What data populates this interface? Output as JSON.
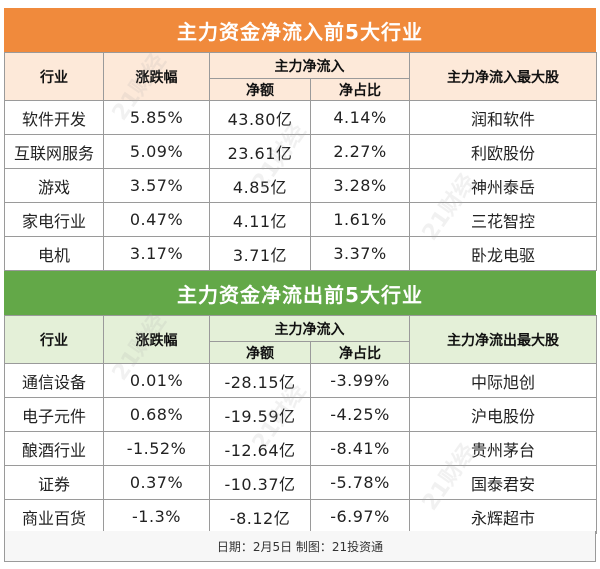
{
  "inflow": {
    "title": "主力资金净流入前5大行业",
    "headers": {
      "industry": "行业",
      "change": "涨跌幅",
      "group": "主力净流入",
      "net": "净额",
      "ratio": "净占比",
      "top_stock": "主力净流入最大股"
    },
    "rows": [
      {
        "industry": "软件开发",
        "change": "5.85%",
        "net": "43.80亿",
        "ratio": "4.14%",
        "top_stock": "润和软件"
      },
      {
        "industry": "互联网服务",
        "change": "5.09%",
        "net": "23.61亿",
        "ratio": "2.27%",
        "top_stock": "利欧股份"
      },
      {
        "industry": "游戏",
        "change": "3.57%",
        "net": "4.85亿",
        "ratio": "3.28%",
        "top_stock": "神州泰岳"
      },
      {
        "industry": "家电行业",
        "change": "0.47%",
        "net": "4.11亿",
        "ratio": "1.61%",
        "top_stock": "三花智控"
      },
      {
        "industry": "电机",
        "change": "3.17%",
        "net": "3.71亿",
        "ratio": "3.37%",
        "top_stock": "卧龙电驱"
      }
    ]
  },
  "outflow": {
    "title": "主力资金净流出前5大行业",
    "headers": {
      "industry": "行业",
      "change": "涨跌幅",
      "group": "主力净流入",
      "net": "净额",
      "ratio": "净占比",
      "top_stock": "主力净流出最大股"
    },
    "rows": [
      {
        "industry": "通信设备",
        "change": "0.01%",
        "net": "-28.15亿",
        "ratio": "-3.99%",
        "top_stock": "中际旭创"
      },
      {
        "industry": "电子元件",
        "change": "0.68%",
        "net": "-19.59亿",
        "ratio": "-4.25%",
        "top_stock": "沪电股份"
      },
      {
        "industry": "酿酒行业",
        "change": "-1.52%",
        "net": "-12.64亿",
        "ratio": "-8.41%",
        "top_stock": "贵州茅台"
      },
      {
        "industry": "证券",
        "change": "0.37%",
        "net": "-10.37亿",
        "ratio": "-5.78%",
        "top_stock": "国泰君安"
      },
      {
        "industry": "商业百货",
        "change": "-1.3%",
        "net": "-8.12亿",
        "ratio": "-6.97%",
        "top_stock": "永辉超市"
      }
    ]
  },
  "footer": "日期：2月5日 制图：21投资通",
  "watermark": "21财经",
  "colors": {
    "inflow_accent": "#f08a3c",
    "outflow_accent": "#63a848",
    "inflow_header_bg": "#fde9d9",
    "outflow_header_bg": "#e4f0d8"
  }
}
